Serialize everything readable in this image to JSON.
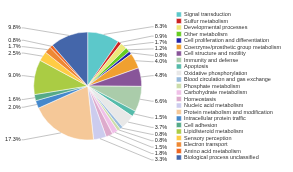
{
  "chart_data": {
    "type": "pie",
    "categories": [
      "Signal transduction",
      "Sulfur metabolism",
      "Developmental processes",
      "Other metabolism",
      "Cell proliferation and differentiation",
      "Coenzyme/prosthetic group metabolism",
      "Cell structure and motility",
      "Immunity and defense",
      "Apoptosis",
      "Oxidative phosphorylation",
      "Blood circulation and gas exchange",
      "Phosphate metabolism",
      "Carbohydrate metabolism",
      "Homeostasis",
      "Nucleic acid metabolism",
      "Protein metabolism and modification",
      "Intracellular protein traffic",
      "Cell adhesion",
      "Lipid/steroid metabolism",
      "Sensory perception",
      "Electron transport",
      "Amino acid metabolism",
      "Biological process unclassified"
    ],
    "values": [
      8.3,
      0.9,
      1.7,
      1.2,
      0.8,
      4.0,
      4.8,
      6.6,
      1.5,
      3.7,
      0.8,
      0.8,
      1.5,
      1.8,
      3.3,
      17.3,
      2.0,
      1.6,
      9.0,
      2.5,
      1.7,
      0.8,
      9.8
    ],
    "value_labels": [
      "8.3%",
      "0.9%",
      "1.7%",
      "1.2%",
      "0.8%",
      "4.0%",
      "4.8%",
      "6.6%",
      "1.5%",
      "3.7%",
      "0.8%",
      "0.8%",
      "1.5%",
      "1.8%",
      "3.3%",
      "17.3%",
      "2.0%",
      "1.6%",
      "9.0%",
      "2.5%",
      "1.7%",
      "0.8%",
      "9.8%"
    ],
    "colors": [
      "#5cc8ca",
      "#cc2222",
      "#ede87a",
      "#66cc22",
      "#2222aa",
      "#f0a030",
      "#885599",
      "#aaccaa",
      "#55bbaa",
      "#e8e8e8",
      "#99bbdd",
      "#ccddaa",
      "#f0c0e8",
      "#ddaacc",
      "#ccccee",
      "#f5c898",
      "#4488cc",
      "#55aa88",
      "#aacc44",
      "#ffcc44",
      "#ee8833",
      "#ee6622",
      "#4466aa"
    ],
    "legend": "right",
    "data_labels": true
  }
}
